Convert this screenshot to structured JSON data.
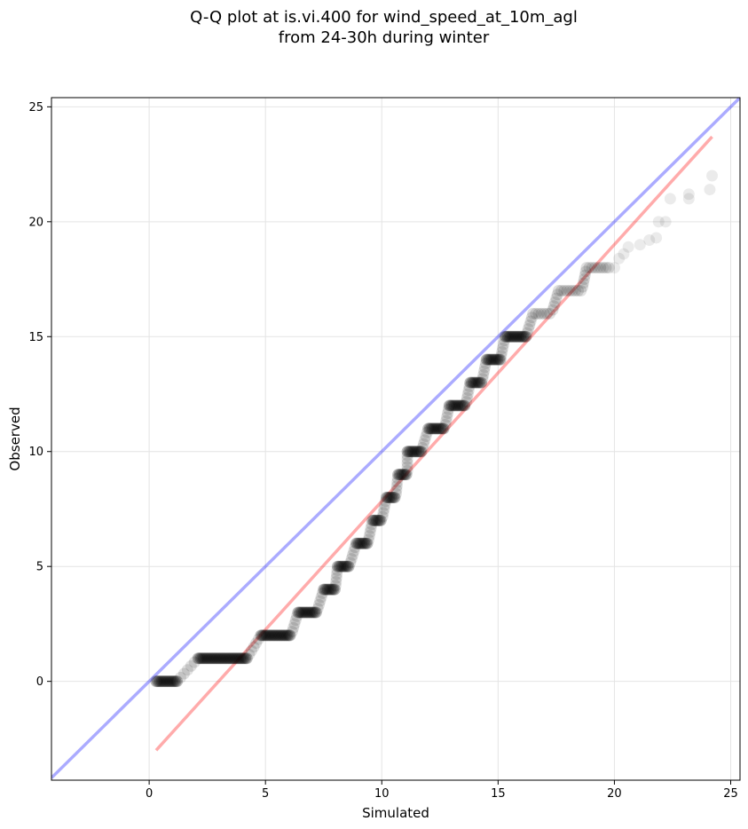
{
  "chart_data": {
    "type": "scatter",
    "title": "Q-Q plot at is.vi.400 for wind_speed_at_10m_agl",
    "subtitle": "from 24-30h during winter",
    "xlabel": "Simulated",
    "ylabel": "Observed",
    "xlim": [
      -4.2,
      25.4
    ],
    "ylim": [
      -4.3,
      25.4
    ],
    "xticks": [
      "0",
      "5",
      "10",
      "15",
      "20",
      "25"
    ],
    "yticks": [
      "0",
      "5",
      "10",
      "15",
      "20",
      "25"
    ],
    "grid": true,
    "series": [
      {
        "kind": "quantile-points",
        "color": "#000000",
        "steps": [
          {
            "y": 0,
            "x_start": 0.3,
            "x_end": 1.2
          },
          {
            "y": 1,
            "x_start": 2.1,
            "x_end": 4.2
          },
          {
            "y": 2,
            "x_start": 4.8,
            "x_end": 6.1
          },
          {
            "y": 3,
            "x_start": 6.4,
            "x_end": 7.2
          },
          {
            "y": 4,
            "x_start": 7.5,
            "x_end": 8.0
          },
          {
            "y": 5,
            "x_start": 8.1,
            "x_end": 8.6
          },
          {
            "y": 6,
            "x_start": 8.9,
            "x_end": 9.4
          },
          {
            "y": 7,
            "x_start": 9.6,
            "x_end": 10.0
          },
          {
            "y": 8,
            "x_start": 10.2,
            "x_end": 10.6
          },
          {
            "y": 9,
            "x_start": 10.7,
            "x_end": 11.1
          },
          {
            "y": 10,
            "x_start": 11.1,
            "x_end": 11.7
          },
          {
            "y": 11,
            "x_start": 12.0,
            "x_end": 12.7
          },
          {
            "y": 12,
            "x_start": 12.9,
            "x_end": 13.6
          },
          {
            "y": 13,
            "x_start": 13.8,
            "x_end": 14.3
          },
          {
            "y": 14,
            "x_start": 14.5,
            "x_end": 15.1
          },
          {
            "y": 15,
            "x_start": 15.3,
            "x_end": 16.2
          },
          {
            "y": 16,
            "x_start": 16.5,
            "x_end": 17.3
          },
          {
            "y": 17,
            "x_start": 17.6,
            "x_end": 18.6
          },
          {
            "y": 18,
            "x_start": 18.8,
            "x_end": 19.8
          }
        ],
        "tail_points": [
          [
            20.0,
            18.0
          ],
          [
            20.2,
            18.4
          ],
          [
            20.4,
            18.6
          ],
          [
            20.6,
            18.9
          ],
          [
            21.1,
            19.0
          ],
          [
            21.5,
            19.2
          ],
          [
            21.8,
            19.3
          ],
          [
            21.9,
            20.0
          ],
          [
            22.2,
            20.0
          ],
          [
            22.4,
            21.0
          ],
          [
            23.2,
            21.0
          ],
          [
            23.2,
            21.2
          ],
          [
            24.1,
            21.4
          ],
          [
            24.2,
            22.0
          ]
        ]
      },
      {
        "kind": "line",
        "color": "#ff0000",
        "points": [
          [
            0.3,
            -3.0
          ],
          [
            24.2,
            23.7
          ]
        ]
      },
      {
        "kind": "line",
        "color": "#0000ff",
        "points": [
          [
            -4.2,
            -4.2
          ],
          [
            25.4,
            25.4
          ]
        ]
      }
    ]
  }
}
